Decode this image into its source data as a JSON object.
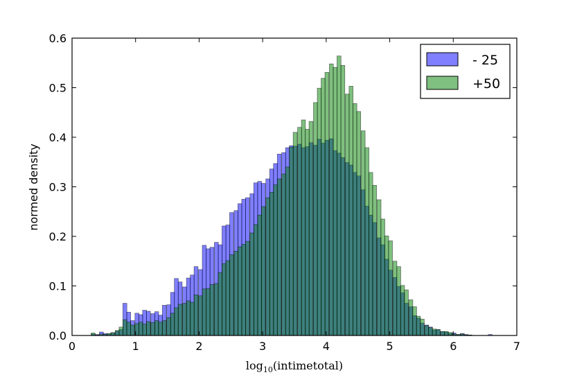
{
  "chart_data": {
    "type": "bar",
    "xlabel_base": "log",
    "xlabel_subscript": "10",
    "xlabel_arg": "(intimetotal)",
    "ylabel": "normed density",
    "xlim": [
      0,
      7
    ],
    "ylim": [
      0,
      0.6
    ],
    "xticks": [
      "0",
      "1",
      "2",
      "3",
      "4",
      "5",
      "6",
      "7"
    ],
    "yticks": [
      "0.0",
      "0.1",
      "0.2",
      "0.3",
      "0.4",
      "0.5",
      "0.6"
    ],
    "grid": false,
    "legend_position": "top-right",
    "bin_width": 0.063,
    "series": [
      {
        "name": "- 25",
        "color": "#0000ff",
        "alpha": 0.5,
        "bins": [
          [
            0.3,
            0.003
          ],
          [
            0.36,
            0.002
          ],
          [
            0.43,
            0.007
          ],
          [
            0.49,
            0.004
          ],
          [
            0.55,
            0.003
          ],
          [
            0.61,
            0.005
          ],
          [
            0.68,
            0.009
          ],
          [
            0.74,
            0.012
          ],
          [
            0.8,
            0.065
          ],
          [
            0.86,
            0.047
          ],
          [
            0.92,
            0.03
          ],
          [
            0.99,
            0.045
          ],
          [
            1.05,
            0.042
          ],
          [
            1.11,
            0.051
          ],
          [
            1.17,
            0.049
          ],
          [
            1.24,
            0.044
          ],
          [
            1.3,
            0.048
          ],
          [
            1.36,
            0.041
          ],
          [
            1.42,
            0.061
          ],
          [
            1.49,
            0.062
          ],
          [
            1.55,
            0.087
          ],
          [
            1.61,
            0.115
          ],
          [
            1.67,
            0.108
          ],
          [
            1.74,
            0.098
          ],
          [
            1.8,
            0.116
          ],
          [
            1.86,
            0.122
          ],
          [
            1.92,
            0.139
          ],
          [
            1.99,
            0.133
          ],
          [
            2.05,
            0.182
          ],
          [
            2.11,
            0.175
          ],
          [
            2.17,
            0.178
          ],
          [
            2.24,
            0.188
          ],
          [
            2.3,
            0.183
          ],
          [
            2.36,
            0.221
          ],
          [
            2.42,
            0.223
          ],
          [
            2.48,
            0.248
          ],
          [
            2.55,
            0.252
          ],
          [
            2.61,
            0.266
          ],
          [
            2.67,
            0.275
          ],
          [
            2.73,
            0.278
          ],
          [
            2.8,
            0.286
          ],
          [
            2.86,
            0.308
          ],
          [
            2.92,
            0.311
          ],
          [
            2.98,
            0.307
          ],
          [
            3.05,
            0.316
          ],
          [
            3.11,
            0.336
          ],
          [
            3.17,
            0.347
          ],
          [
            3.23,
            0.366
          ],
          [
            3.3,
            0.369
          ],
          [
            3.36,
            0.379
          ],
          [
            3.42,
            0.383
          ],
          [
            3.48,
            0.382
          ],
          [
            3.55,
            0.386
          ],
          [
            3.61,
            0.379
          ],
          [
            3.67,
            0.381
          ],
          [
            3.73,
            0.389
          ],
          [
            3.8,
            0.384
          ],
          [
            3.86,
            0.396
          ],
          [
            3.92,
            0.388
          ],
          [
            3.98,
            0.394
          ],
          [
            4.05,
            0.397
          ],
          [
            4.11,
            0.373
          ],
          [
            4.17,
            0.368
          ],
          [
            4.23,
            0.359
          ],
          [
            4.3,
            0.349
          ],
          [
            4.36,
            0.344
          ],
          [
            4.42,
            0.329
          ],
          [
            4.48,
            0.322
          ],
          [
            4.55,
            0.294
          ],
          [
            4.61,
            0.261
          ],
          [
            4.67,
            0.243
          ],
          [
            4.73,
            0.228
          ],
          [
            4.8,
            0.197
          ],
          [
            4.86,
            0.183
          ],
          [
            4.92,
            0.154
          ],
          [
            4.98,
            0.132
          ],
          [
            5.05,
            0.117
          ],
          [
            5.11,
            0.099
          ],
          [
            5.17,
            0.086
          ],
          [
            5.23,
            0.065
          ],
          [
            5.3,
            0.058
          ],
          [
            5.36,
            0.04
          ],
          [
            5.42,
            0.035
          ],
          [
            5.48,
            0.025
          ],
          [
            5.55,
            0.021
          ],
          [
            5.61,
            0.017
          ],
          [
            5.67,
            0.011
          ],
          [
            5.73,
            0.012
          ],
          [
            5.8,
            0.008
          ],
          [
            5.86,
            0.007
          ],
          [
            5.92,
            0.004
          ],
          [
            5.98,
            0.005
          ],
          [
            6.05,
            0.002
          ],
          [
            6.11,
            0.004
          ],
          [
            6.17,
            0.002
          ],
          [
            6.23,
            0.001
          ],
          [
            6.55,
            0.002
          ]
        ]
      },
      {
        "name": "+50",
        "color": "#008000",
        "alpha": 0.5,
        "bins": [
          [
            0.3,
            0.005
          ],
          [
            0.36,
            0.001
          ],
          [
            0.43,
            0.003
          ],
          [
            0.49,
            0.002
          ],
          [
            0.55,
            0.004
          ],
          [
            0.61,
            0.006
          ],
          [
            0.68,
            0.01
          ],
          [
            0.74,
            0.017
          ],
          [
            0.8,
            0.032
          ],
          [
            0.86,
            0.027
          ],
          [
            0.92,
            0.021
          ],
          [
            0.99,
            0.024
          ],
          [
            1.05,
            0.027
          ],
          [
            1.11,
            0.023
          ],
          [
            1.17,
            0.028
          ],
          [
            1.24,
            0.026
          ],
          [
            1.3,
            0.03
          ],
          [
            1.36,
            0.027
          ],
          [
            1.42,
            0.03
          ],
          [
            1.49,
            0.036
          ],
          [
            1.55,
            0.045
          ],
          [
            1.61,
            0.056
          ],
          [
            1.67,
            0.063
          ],
          [
            1.74,
            0.065
          ],
          [
            1.8,
            0.07
          ],
          [
            1.86,
            0.067
          ],
          [
            1.92,
            0.082
          ],
          [
            1.99,
            0.08
          ],
          [
            2.05,
            0.094
          ],
          [
            2.11,
            0.095
          ],
          [
            2.17,
            0.103
          ],
          [
            2.24,
            0.105
          ],
          [
            2.3,
            0.127
          ],
          [
            2.36,
            0.145
          ],
          [
            2.42,
            0.151
          ],
          [
            2.48,
            0.163
          ],
          [
            2.55,
            0.17
          ],
          [
            2.61,
            0.179
          ],
          [
            2.67,
            0.184
          ],
          [
            2.73,
            0.19
          ],
          [
            2.8,
            0.207
          ],
          [
            2.86,
            0.224
          ],
          [
            2.92,
            0.243
          ],
          [
            2.98,
            0.26
          ],
          [
            3.05,
            0.278
          ],
          [
            3.11,
            0.289
          ],
          [
            3.17,
            0.304
          ],
          [
            3.23,
            0.316
          ],
          [
            3.3,
            0.326
          ],
          [
            3.36,
            0.34
          ],
          [
            3.42,
            0.38
          ],
          [
            3.48,
            0.41
          ],
          [
            3.55,
            0.42
          ],
          [
            3.61,
            0.435
          ],
          [
            3.67,
            0.416
          ],
          [
            3.73,
            0.432
          ],
          [
            3.8,
            0.47
          ],
          [
            3.86,
            0.499
          ],
          [
            3.92,
            0.519
          ],
          [
            3.98,
            0.531
          ],
          [
            4.05,
            0.548
          ],
          [
            4.11,
            0.541
          ],
          [
            4.17,
            0.564
          ],
          [
            4.23,
            0.545
          ],
          [
            4.3,
            0.487
          ],
          [
            4.36,
            0.503
          ],
          [
            4.42,
            0.468
          ],
          [
            4.48,
            0.452
          ],
          [
            4.55,
            0.413
          ],
          [
            4.61,
            0.379
          ],
          [
            4.67,
            0.329
          ],
          [
            4.73,
            0.303
          ],
          [
            4.8,
            0.274
          ],
          [
            4.86,
            0.235
          ],
          [
            4.92,
            0.201
          ],
          [
            4.98,
            0.191
          ],
          [
            5.05,
            0.15
          ],
          [
            5.11,
            0.139
          ],
          [
            5.17,
            0.101
          ],
          [
            5.23,
            0.092
          ],
          [
            5.3,
            0.072
          ],
          [
            5.36,
            0.058
          ],
          [
            5.42,
            0.039
          ],
          [
            5.48,
            0.033
          ],
          [
            5.55,
            0.02
          ],
          [
            5.61,
            0.016
          ],
          [
            5.67,
            0.013
          ],
          [
            5.73,
            0.012
          ],
          [
            5.8,
            0.008
          ],
          [
            5.86,
            0.008
          ],
          [
            5.92,
            0.006
          ],
          [
            5.98,
            0.003
          ],
          [
            6.05,
            0.002
          ],
          [
            6.11,
            0.003
          ],
          [
            6.17,
            0.001
          ],
          [
            6.23,
            0.001
          ]
        ]
      }
    ]
  }
}
